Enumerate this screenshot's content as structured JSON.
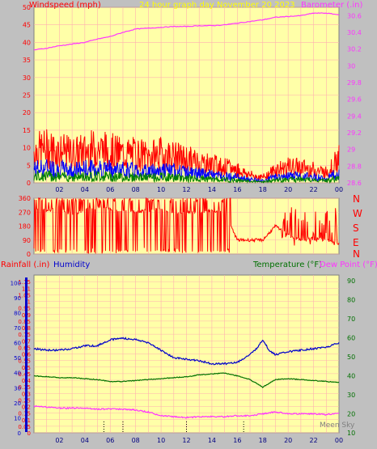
{
  "header": {
    "left_label": "Windspeed (mph)",
    "center_label": "24 hour graph day   November 20 2023",
    "right_label": "Barometer (.in)"
  },
  "panel2": {
    "dir_labels": [
      "N",
      "W",
      "S",
      "E",
      "N"
    ]
  },
  "panel3": {
    "rain_label": "Rainfall (.in)",
    "humidity_label": "Humidity",
    "temp_label": "Temperature (°F)",
    "dew_label": "Dew Point (°F)",
    "footer_text": "Meen Sky"
  },
  "colors": {
    "background": "#c0c0c0",
    "plot_bg": "#ffffa8",
    "grid": "#ffb0b0",
    "wind": "#ff0000",
    "wind_gust": "#0000ff",
    "wind_low": "#008000",
    "barometer": "#ff33ff",
    "humidity": "#0000cc",
    "temperature": "#007000",
    "dew_point": "#ff33ff",
    "title": "#ffff00"
  },
  "chart_data": [
    {
      "type": "line",
      "x_ticks": [
        "02",
        "04",
        "06",
        "08",
        "10",
        "12",
        "14",
        "16",
        "18",
        "20",
        "22",
        "00"
      ],
      "x_range_hours": [
        0,
        24
      ],
      "y_left_ticks": [
        "0",
        "5",
        "10",
        "15",
        "20",
        "25",
        "30",
        "35",
        "40",
        "45",
        "50"
      ],
      "ylim_left": [
        0,
        50
      ],
      "y_right_ticks": [
        "28.6",
        "28.8",
        "29",
        "29.2",
        "29.4",
        "29.6",
        "29.8",
        "30",
        "30.2",
        "30.4",
        "30.6"
      ],
      "ylim_right": [
        28.6,
        30.7
      ],
      "grid": true,
      "series": [
        {
          "name": "Windspeed",
          "color": "#ff0000",
          "x": [
            0,
            1,
            2,
            3,
            4,
            5,
            6,
            7,
            8,
            9,
            10,
            11,
            12,
            13,
            14,
            15,
            16,
            17,
            18,
            19,
            20,
            21,
            22,
            23,
            24
          ],
          "y": [
            12,
            13,
            12,
            11,
            12,
            13,
            12,
            11,
            11,
            10,
            11,
            10,
            9,
            8,
            7,
            6,
            5,
            3,
            2,
            5,
            6,
            6,
            5,
            4,
            9
          ]
        },
        {
          "name": "Barometer",
          "color": "#ff33ff",
          "x": [
            0,
            1,
            2,
            3,
            4,
            5,
            6,
            7,
            8,
            9,
            10,
            11,
            12,
            13,
            14,
            15,
            16,
            17,
            18,
            19,
            20,
            21,
            22,
            23,
            24
          ],
          "y": [
            30.19,
            30.21,
            30.24,
            30.26,
            30.28,
            30.32,
            30.35,
            30.4,
            30.44,
            30.45,
            30.46,
            30.47,
            30.47,
            30.48,
            30.48,
            30.49,
            30.51,
            30.53,
            30.55,
            30.58,
            30.59,
            30.6,
            30.63,
            30.63,
            30.61
          ]
        }
      ]
    },
    {
      "type": "scatter",
      "x_range_hours": [
        0,
        24
      ],
      "y_ticks": [
        "0",
        "90",
        "180",
        "270",
        "360"
      ],
      "ylim": [
        0,
        360
      ],
      "series": [
        {
          "name": "Wind direction",
          "color": "#ff0000",
          "x": [
            0,
            1,
            2,
            3,
            4,
            5,
            6,
            7,
            8,
            9,
            10,
            11,
            12,
            13,
            14,
            15,
            16,
            17,
            18,
            19,
            20,
            21,
            22,
            23,
            24
          ],
          "y": [
            290,
            280,
            300,
            250,
            280,
            300,
            290,
            280,
            270,
            280,
            290,
            260,
            270,
            270,
            280,
            270,
            90,
            90,
            90,
            180,
            120,
            90,
            100,
            90,
            70
          ]
        }
      ]
    },
    {
      "type": "line",
      "x_ticks": [
        "02",
        "04",
        "06",
        "08",
        "10",
        "12",
        "14",
        "16",
        "18",
        "20",
        "22",
        "00"
      ],
      "x_range_hours": [
        0,
        24
      ],
      "y_left_ticks": [
        "0",
        "0.05",
        "0.1",
        "0.15",
        "0.2",
        "0.25",
        "0.3",
        "0.35",
        "0.4",
        "0.45",
        "0.5",
        "0.55",
        "0.6",
        "0.65",
        "0.7",
        "0.75",
        "0.8",
        "0.85",
        "0.9",
        "0.95",
        "1",
        "1.05",
        "1.1",
        "1.15"
      ],
      "ylim_left": [
        0,
        1.2
      ],
      "y_humidity_ticks": [
        "0",
        "10",
        "20",
        "30",
        "40",
        "50",
        "60",
        "70",
        "80",
        "90",
        "100"
      ],
      "ylim_humidity": [
        0,
        105
      ],
      "y_right_ticks": [
        "10",
        "20",
        "30",
        "40",
        "50",
        "60",
        "70",
        "80",
        "90"
      ],
      "ylim_right": [
        10,
        93
      ],
      "grid": true,
      "series": [
        {
          "name": "Humidity",
          "color": "#0000cc",
          "x": [
            0,
            1,
            2,
            3,
            4,
            5,
            6,
            7,
            8,
            9,
            10,
            11,
            12,
            13,
            14,
            15,
            16,
            17,
            17.5,
            18,
            18.5,
            19,
            20,
            21,
            22,
            23,
            24
          ],
          "y": [
            56,
            55,
            55,
            56,
            58,
            58,
            62,
            63,
            62,
            60,
            55,
            50,
            49,
            48,
            46,
            46,
            47,
            52,
            56,
            62,
            55,
            52,
            54,
            55,
            56,
            57,
            60
          ]
        },
        {
          "name": "Temperature",
          "color": "#007000",
          "x": [
            0,
            1,
            2,
            3,
            4,
            5,
            6,
            7,
            8,
            9,
            10,
            11,
            12,
            13,
            14,
            15,
            16,
            17,
            18,
            19,
            20,
            21,
            22,
            23,
            24
          ],
          "y": [
            40,
            39.5,
            39,
            39,
            38.5,
            38,
            37,
            37,
            37.5,
            38,
            38.5,
            39,
            39.5,
            40.5,
            41,
            41.5,
            40,
            38,
            34,
            38,
            38.5,
            38,
            37.5,
            37,
            36.5
          ]
        },
        {
          "name": "Dew Point",
          "color": "#ff33ff",
          "x": [
            0,
            1,
            2,
            3,
            4,
            5,
            6,
            7,
            8,
            9,
            10,
            11,
            12,
            13,
            14,
            15,
            16,
            17,
            18,
            19,
            20,
            21,
            22,
            23,
            24
          ],
          "y": [
            24,
            23.5,
            23,
            23,
            23,
            22.5,
            22.5,
            22.5,
            22,
            21,
            19,
            18.5,
            18,
            18.5,
            18.5,
            18.5,
            19,
            19,
            20,
            21,
            20,
            20,
            20,
            19.5,
            20.5
          ]
        }
      ]
    }
  ]
}
